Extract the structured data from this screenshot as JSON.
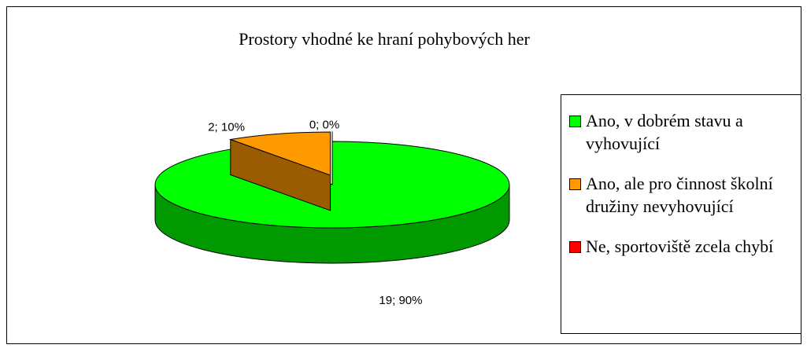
{
  "chart_data": {
    "type": "pie",
    "title": "Prostory vhodné ke hraní pohybových her",
    "categories": [
      "Ano, v dobrém stavu a vyhovující",
      "Ano, ale pro činnost školní družiny nevyhovující",
      "Ne, sportoviště zcela chybí"
    ],
    "values": [
      19,
      2,
      0
    ],
    "value_labels": [
      "19; 90%",
      "2; 10%",
      "0; 0%"
    ],
    "colors": [
      "#00ff00",
      "#ff9900",
      "#ff0000"
    ],
    "legend": "right"
  }
}
